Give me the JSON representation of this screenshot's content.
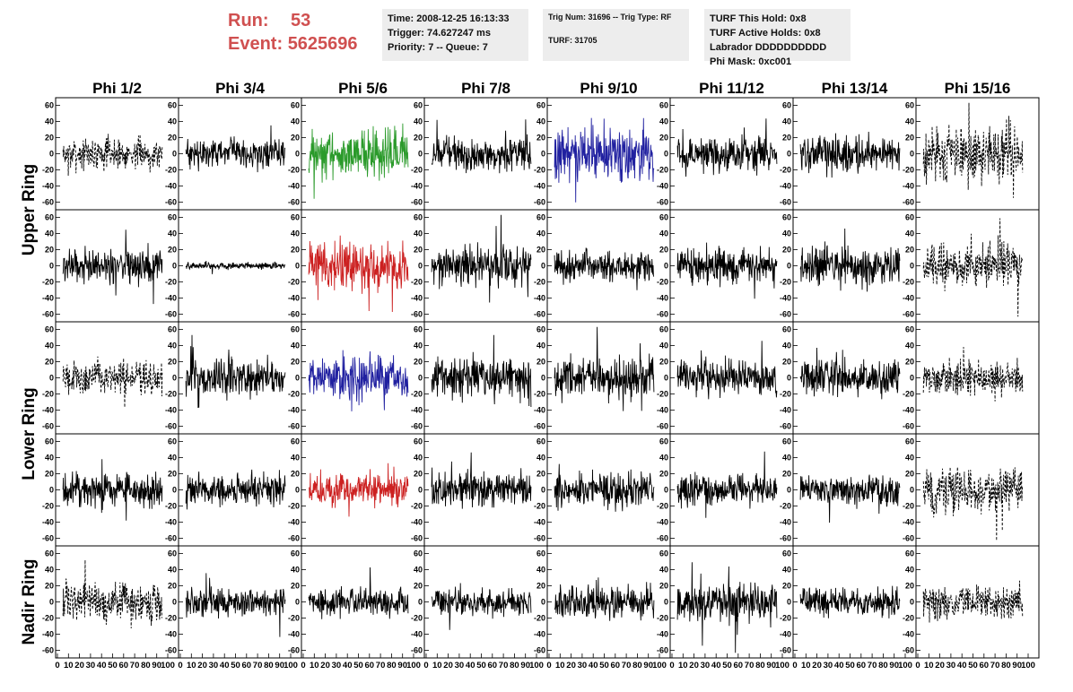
{
  "header": {
    "run_label": "Run:",
    "run_value": "53",
    "event_label": "Event:",
    "event_value": "5625696"
  },
  "info_time": {
    "time": "Time: 2008-12-25 16:13:33",
    "trigger": "Trigger: 74.627247 ms",
    "priority": "Priority: 7 -- Queue: 7"
  },
  "info_trig": {
    "trig": "Trig Num: 31696 -- Trig Type: RF",
    "turf": "TURF: 31705"
  },
  "info_turf": {
    "this_hold": "TURF This Hold: 0x8",
    "active_holds": "TURF Active Holds: 0x8",
    "labrador": "Labrador DDDDDDDDDD",
    "phi_mask": "Phi Mask: 0xc001"
  },
  "chart_data": {
    "type": "line",
    "columns": [
      "Phi 1/2",
      "Phi 3/4",
      "Phi 5/6",
      "Phi 7/8",
      "Phi 9/10",
      "Phi 11/12",
      "Phi 13/14",
      "Phi 15/16"
    ],
    "ring_labels": [
      "Upper Ring",
      "Lower Ring",
      "Nadir Ring"
    ],
    "xlim": [
      0,
      100
    ],
    "ylim": [
      -65,
      65
    ],
    "yticks": [
      -60,
      -40,
      -20,
      0,
      20,
      40,
      60
    ],
    "xticks": [
      0,
      10,
      20,
      30,
      40,
      50,
      60,
      70,
      80,
      90,
      100
    ],
    "colors": {
      "default": "#000000",
      "green": "#2a9a2a",
      "red": "#cc2020",
      "blue": "#2020a0"
    },
    "panels": [
      [
        {
          "amp": 14,
          "dashed": true,
          "color": "default"
        },
        {
          "amp": 13,
          "dashed": false,
          "color": "default"
        },
        {
          "amp": 22,
          "dashed": false,
          "color": "green"
        },
        {
          "amp": 16,
          "dashed": false,
          "color": "default"
        },
        {
          "amp": 24,
          "dashed": false,
          "color": "blue"
        },
        {
          "amp": 15,
          "dashed": false,
          "color": "default"
        },
        {
          "amp": 16,
          "dashed": false,
          "color": "default"
        },
        {
          "amp": 26,
          "dashed": true,
          "color": "default"
        }
      ],
      [
        {
          "amp": 16,
          "dashed": false,
          "color": "default"
        },
        {
          "amp": 3,
          "dashed": false,
          "color": "default"
        },
        {
          "amp": 22,
          "dashed": false,
          "color": "red"
        },
        {
          "amp": 18,
          "dashed": false,
          "color": "default"
        },
        {
          "amp": 14,
          "dashed": false,
          "color": "default"
        },
        {
          "amp": 16,
          "dashed": false,
          "color": "default"
        },
        {
          "amp": 18,
          "dashed": false,
          "color": "default"
        },
        {
          "amp": 20,
          "dashed": true,
          "color": "default"
        }
      ],
      [
        {
          "amp": 15,
          "dashed": true,
          "color": "default"
        },
        {
          "amp": 17,
          "dashed": false,
          "color": "default"
        },
        {
          "amp": 20,
          "dashed": false,
          "color": "blue"
        },
        {
          "amp": 18,
          "dashed": false,
          "color": "default"
        },
        {
          "amp": 18,
          "dashed": false,
          "color": "default"
        },
        {
          "amp": 16,
          "dashed": false,
          "color": "default"
        },
        {
          "amp": 18,
          "dashed": false,
          "color": "default"
        },
        {
          "amp": 16,
          "dashed": true,
          "color": "default"
        }
      ],
      [
        {
          "amp": 16,
          "dashed": false,
          "color": "default"
        },
        {
          "amp": 14,
          "dashed": false,
          "color": "default"
        },
        {
          "amp": 16,
          "dashed": false,
          "color": "red"
        },
        {
          "amp": 16,
          "dashed": false,
          "color": "default"
        },
        {
          "amp": 16,
          "dashed": false,
          "color": "default"
        },
        {
          "amp": 14,
          "dashed": false,
          "color": "default"
        },
        {
          "amp": 14,
          "dashed": false,
          "color": "default"
        },
        {
          "amp": 22,
          "dashed": true,
          "color": "default"
        }
      ],
      [
        {
          "amp": 18,
          "dashed": true,
          "color": "default"
        },
        {
          "amp": 13,
          "dashed": false,
          "color": "default"
        },
        {
          "amp": 13,
          "dashed": false,
          "color": "default"
        },
        {
          "amp": 12,
          "dashed": false,
          "color": "default"
        },
        {
          "amp": 14,
          "dashed": false,
          "color": "default"
        },
        {
          "amp": 17,
          "dashed": false,
          "color": "default"
        },
        {
          "amp": 13,
          "dashed": false,
          "color": "default"
        },
        {
          "amp": 16,
          "dashed": true,
          "color": "default"
        }
      ]
    ]
  }
}
